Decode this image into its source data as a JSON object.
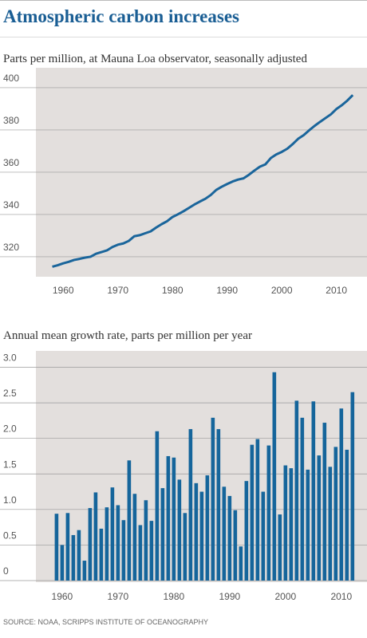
{
  "title": "Atmospheric carbon increases",
  "source": "SOURCE: NOAA, SCRIPPS INSTITUTE OF OCEANOGRAPHY",
  "chart_data": [
    {
      "type": "line",
      "subtitle": "Parts per million, at Mauna Loa observator, seasonally adjusted",
      "color": "#1a659b",
      "x": [
        1958,
        1959,
        1960,
        1961,
        1962,
        1963,
        1964,
        1965,
        1966,
        1967,
        1968,
        1969,
        1970,
        1971,
        1972,
        1973,
        1974,
        1975,
        1976,
        1977,
        1978,
        1979,
        1980,
        1981,
        1982,
        1983,
        1984,
        1985,
        1986,
        1987,
        1988,
        1989,
        1990,
        1991,
        1992,
        1993,
        1994,
        1995,
        1996,
        1997,
        1998,
        1999,
        2000,
        2001,
        2002,
        2003,
        2004,
        2005,
        2006,
        2007,
        2008,
        2009,
        2010,
        2011,
        2012,
        2013
      ],
      "values": [
        315.3,
        316.0,
        316.9,
        317.6,
        318.5,
        319.0,
        319.6,
        320.0,
        321.4,
        322.2,
        323.0,
        324.6,
        325.7,
        326.3,
        327.5,
        329.7,
        330.2,
        331.1,
        332.0,
        333.8,
        335.4,
        336.8,
        338.8,
        340.1,
        341.5,
        343.1,
        344.7,
        346.1,
        347.4,
        349.2,
        351.6,
        353.1,
        354.4,
        355.6,
        356.5,
        357.1,
        358.8,
        360.8,
        362.6,
        363.7,
        366.7,
        368.4,
        369.6,
        371.1,
        373.3,
        375.8,
        377.5,
        379.8,
        381.9,
        383.8,
        385.6,
        387.4,
        389.9,
        391.7,
        393.9,
        396.5
      ],
      "xlim": [
        1955,
        2015.6
      ],
      "xticks": [
        1960,
        1970,
        1980,
        1990,
        2000,
        2010
      ],
      "ylim": [
        311.3,
        409.4
      ],
      "yticks": [
        320,
        340,
        360,
        380,
        400
      ],
      "grid": true
    },
    {
      "type": "bar",
      "subtitle": "Annual mean growth rate, parts per million per year",
      "color": "#15659b",
      "x": [
        1959,
        1960,
        1961,
        1962,
        1963,
        1964,
        1965,
        1966,
        1967,
        1968,
        1969,
        1970,
        1971,
        1972,
        1973,
        1974,
        1975,
        1976,
        1977,
        1978,
        1979,
        1980,
        1981,
        1982,
        1983,
        1984,
        1985,
        1986,
        1987,
        1988,
        1989,
        1990,
        1991,
        1992,
        1993,
        1994,
        1995,
        1996,
        1997,
        1998,
        1999,
        2000,
        2001,
        2002,
        2003,
        2004,
        2005,
        2006,
        2007,
        2008,
        2009,
        2010,
        2011,
        2012
      ],
      "values": [
        0.94,
        0.5,
        0.95,
        0.64,
        0.71,
        0.28,
        1.02,
        1.24,
        0.73,
        1.03,
        1.31,
        1.06,
        0.85,
        1.69,
        1.22,
        0.78,
        1.13,
        0.84,
        2.1,
        1.3,
        1.75,
        1.73,
        1.42,
        0.95,
        2.13,
        1.37,
        1.25,
        1.48,
        2.29,
        2.13,
        1.32,
        1.19,
        0.99,
        0.48,
        1.4,
        1.91,
        1.99,
        1.25,
        1.9,
        2.93,
        0.93,
        1.62,
        1.58,
        2.53,
        2.29,
        1.56,
        2.52,
        1.76,
        2.22,
        1.6,
        1.88,
        2.42,
        1.84,
        2.65
      ],
      "xlim": [
        1955.3,
        2014.6
      ],
      "xticks": [
        1960,
        1970,
        1980,
        1990,
        2000,
        2010
      ],
      "ylim": [
        0,
        3.23
      ],
      "yticks": [
        0,
        0.5,
        {
          "value": 1,
          "label": "1.0"
        },
        1.5,
        {
          "value": 2,
          "label": "2.0"
        },
        2.5,
        {
          "value": 3,
          "label": "3.0"
        }
      ],
      "grid": true
    }
  ]
}
